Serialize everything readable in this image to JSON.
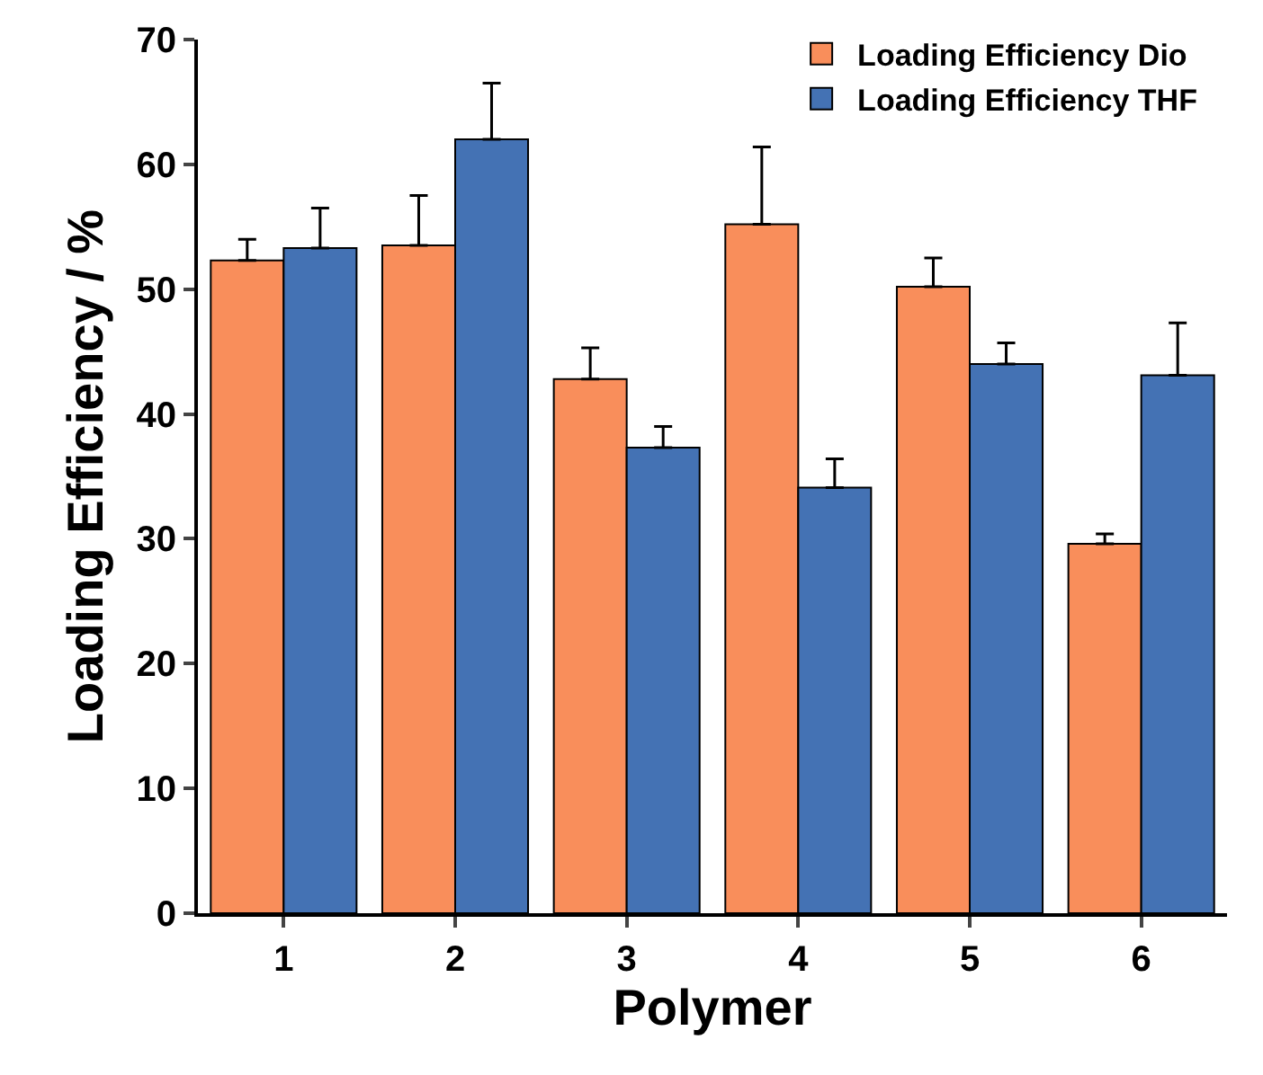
{
  "chart_data": {
    "type": "bar",
    "xlabel": "Polymer",
    "ylabel": "Loading Efficiency / %",
    "categories": [
      "1",
      "2",
      "3",
      "4",
      "5",
      "6"
    ],
    "series": [
      {
        "name": "Loading Efficiency Dio",
        "color": "#f98e5b",
        "values": [
          52.3,
          53.5,
          42.8,
          55.2,
          50.2,
          29.6
        ],
        "errors": [
          [
            52.3,
            54.0
          ],
          [
            53.5,
            57.5
          ],
          [
            42.8,
            45.3
          ],
          [
            55.2,
            61.4
          ],
          [
            50.2,
            52.5
          ],
          [
            29.6,
            30.4
          ]
        ]
      },
      {
        "name": "Loading Efficiency THF",
        "color": "#4472b4",
        "values": [
          53.3,
          62.0,
          37.3,
          34.1,
          44.0,
          43.1
        ],
        "errors": [
          [
            53.3,
            56.5
          ],
          [
            62.0,
            66.5
          ],
          [
            37.3,
            39.0
          ],
          [
            34.1,
            36.4
          ],
          [
            44.0,
            45.7
          ],
          [
            43.1,
            47.3
          ]
        ]
      }
    ],
    "ylim": [
      0,
      70
    ],
    "yticks": [
      0,
      10,
      20,
      30,
      40,
      50,
      60,
      70
    ],
    "grid": false,
    "legend": "top right"
  }
}
